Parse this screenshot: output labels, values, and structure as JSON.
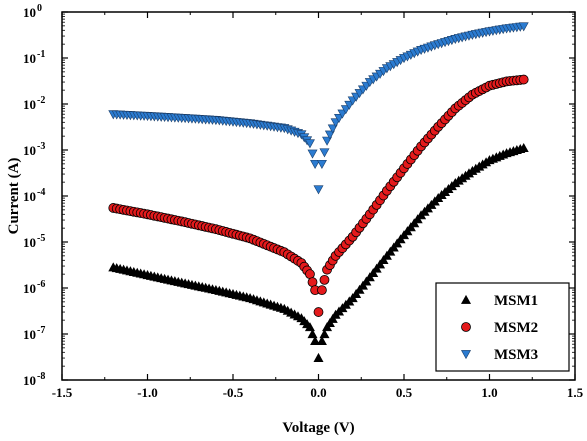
{
  "chart_data": {
    "type": "scatter",
    "title": "",
    "xlabel": "Voltage (V)",
    "ylabel": "Current (A)",
    "xlim": [
      -1.5,
      1.5
    ],
    "ylim_log10": [
      -8,
      0
    ],
    "y_scale": "log",
    "grid": false,
    "legend_position": "bottom-right",
    "x_ticks": [
      -1.5,
      -1.0,
      -0.5,
      0.0,
      0.5,
      1.0,
      1.5
    ],
    "x_tick_labels": [
      "-1.5",
      "-1.0",
      "-0.5",
      "0.0",
      "0.5",
      "1.0",
      "1.5"
    ],
    "y_ticks_exponent": [
      -8,
      -7,
      -6,
      -5,
      -4,
      -3,
      -2,
      -1,
      0
    ],
    "y_tick_base": "10",
    "y_tick_exponent_labels": [
      "-8",
      "-7",
      "-6",
      "-5",
      "-4",
      "-3",
      "-2",
      "-1",
      "0"
    ],
    "series": [
      {
        "name": "MSM1",
        "marker": "triangle-up",
        "color": "#000000",
        "points": [
          [
            -1.2,
            2.8e-06
          ],
          [
            -1.0,
            1.9e-06
          ],
          [
            -0.8,
            1.3e-06
          ],
          [
            -0.6,
            9e-07
          ],
          [
            -0.4,
            6e-07
          ],
          [
            -0.2,
            3.5e-07
          ],
          [
            -0.1,
            2.2e-07
          ],
          [
            -0.05,
            1.4e-07
          ],
          [
            -0.02,
            7e-08
          ],
          [
            0.0,
            3e-08
          ],
          [
            0.02,
            7e-08
          ],
          [
            0.05,
            1.4e-07
          ],
          [
            0.1,
            2.6e-07
          ],
          [
            0.2,
            6e-07
          ],
          [
            0.3,
            1.7e-06
          ],
          [
            0.4,
            5e-06
          ],
          [
            0.5,
            1.4e-05
          ],
          [
            0.6,
            3.8e-05
          ],
          [
            0.7,
            9e-05
          ],
          [
            0.8,
            0.00019
          ],
          [
            0.9,
            0.00035
          ],
          [
            1.0,
            0.0006
          ],
          [
            1.1,
            0.00085
          ],
          [
            1.2,
            0.0011
          ]
        ]
      },
      {
        "name": "MSM2",
        "marker": "circle",
        "color": "#e41a1c",
        "points": [
          [
            -1.2,
            5.5e-05
          ],
          [
            -1.0,
            4e-05
          ],
          [
            -0.8,
            2.8e-05
          ],
          [
            -0.6,
            1.9e-05
          ],
          [
            -0.4,
            1.2e-05
          ],
          [
            -0.2,
            6e-06
          ],
          [
            -0.1,
            3.5e-06
          ],
          [
            -0.05,
            2e-06
          ],
          [
            -0.02,
            9e-07
          ],
          [
            0.0,
            3e-07
          ],
          [
            0.02,
            9e-07
          ],
          [
            0.05,
            2.5e-06
          ],
          [
            0.1,
            5e-06
          ],
          [
            0.2,
            1.3e-05
          ],
          [
            0.3,
            4e-05
          ],
          [
            0.4,
            0.00013
          ],
          [
            0.5,
            0.0004
          ],
          [
            0.6,
            0.0012
          ],
          [
            0.7,
            0.0032
          ],
          [
            0.8,
            0.008
          ],
          [
            0.9,
            0.016
          ],
          [
            1.0,
            0.025
          ],
          [
            1.1,
            0.031
          ],
          [
            1.2,
            0.034
          ]
        ]
      },
      {
        "name": "MSM3",
        "marker": "triangle-down",
        "color": "#2b7bd0",
        "points": [
          [
            -1.2,
            0.006
          ],
          [
            -1.0,
            0.0055
          ],
          [
            -0.8,
            0.005
          ],
          [
            -0.6,
            0.0045
          ],
          [
            -0.4,
            0.0038
          ],
          [
            -0.2,
            0.003
          ],
          [
            -0.1,
            0.0022
          ],
          [
            -0.05,
            0.0014
          ],
          [
            -0.02,
            0.0005
          ],
          [
            0.0,
            0.00014
          ],
          [
            0.02,
            0.0005
          ],
          [
            0.05,
            0.0016
          ],
          [
            0.1,
            0.004
          ],
          [
            0.2,
            0.012
          ],
          [
            0.3,
            0.03
          ],
          [
            0.4,
            0.06
          ],
          [
            0.5,
            0.1
          ],
          [
            0.6,
            0.15
          ],
          [
            0.7,
            0.2
          ],
          [
            0.8,
            0.26
          ],
          [
            0.9,
            0.32
          ],
          [
            1.0,
            0.38
          ],
          [
            1.1,
            0.44
          ],
          [
            1.2,
            0.49
          ]
        ]
      }
    ]
  }
}
